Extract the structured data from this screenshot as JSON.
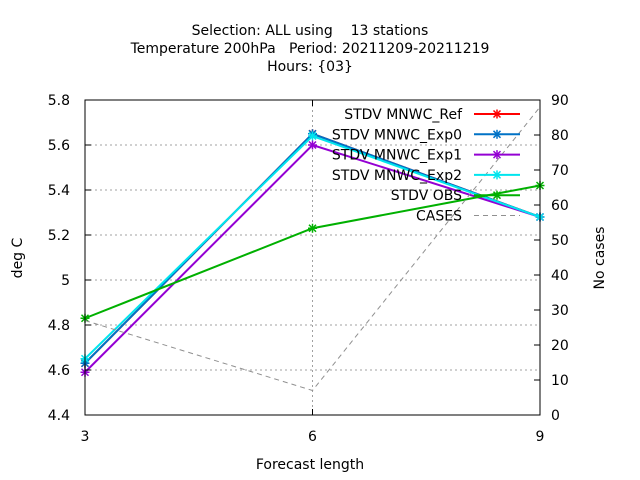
{
  "chart_data": {
    "type": "line",
    "title_lines": [
      "Selection: ALL using    13 stations",
      "Temperature 200hPa   Period: 20211209-20211219",
      "Hours: {03}"
    ],
    "xlabel": "Forecast length",
    "ylabel": "deg C",
    "y2label": "No cases",
    "x": [
      3,
      6,
      9
    ],
    "xlim": [
      3,
      9
    ],
    "ylim": [
      4.4,
      5.8
    ],
    "y2lim": [
      0,
      90
    ],
    "xticks": [
      3,
      6,
      9
    ],
    "yticks": [
      4.4,
      4.6,
      4.8,
      5,
      5.2,
      5.4,
      5.6,
      5.8
    ],
    "y2ticks": [
      0,
      10,
      20,
      30,
      40,
      50,
      60,
      70,
      80,
      90
    ],
    "grid": true,
    "legend_position": "top-right",
    "series": [
      {
        "name": "STDV MNWC_Ref",
        "axis": "y",
        "color": "#ff0000",
        "values": [
          4.63,
          5.65,
          5.28
        ]
      },
      {
        "name": "STDV MNWC_Exp0",
        "axis": "y",
        "color": "#0072c6",
        "values": [
          4.63,
          5.65,
          5.28
        ]
      },
      {
        "name": "STDV MNWC_Exp1",
        "axis": "y",
        "color": "#9400d3",
        "values": [
          4.59,
          5.6,
          5.28
        ]
      },
      {
        "name": "STDV MNWC_Exp2",
        "axis": "y",
        "color": "#00e5ee",
        "values": [
          4.65,
          5.64,
          5.28
        ]
      },
      {
        "name": "STDV OBS",
        "axis": "y",
        "color": "#00b000",
        "values": [
          4.83,
          5.23,
          5.42
        ]
      },
      {
        "name": "CASES",
        "axis": "y2",
        "color": "#909090",
        "dashed": true,
        "values": [
          27,
          7,
          88
        ]
      }
    ]
  }
}
